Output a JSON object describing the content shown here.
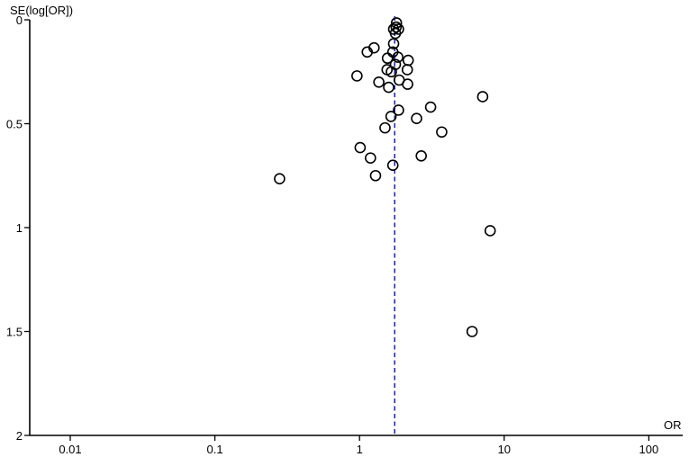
{
  "chart_data": {
    "type": "scatter",
    "title": "",
    "xlabel": "OR",
    "ylabel": "SE(log[OR])",
    "x_scale": "log",
    "y_inverted": true,
    "xlim": [
      0.005,
      175
    ],
    "ylim": [
      0,
      2
    ],
    "x_ticks": [
      0.01,
      0.1,
      1,
      10,
      100
    ],
    "x_tick_labels": [
      "0.01",
      "0.1",
      "1",
      "10",
      "100"
    ],
    "y_ticks": [
      0,
      0.5,
      1,
      1.5,
      2
    ],
    "y_tick_labels": [
      "0",
      "0.5",
      "1",
      "1.5",
      "2"
    ],
    "pooled_or": 1.75,
    "pooled_line_color": "#1f1fb0",
    "grid": false,
    "points": [
      {
        "x": 1.8,
        "y": 0.015
      },
      {
        "x": 1.79,
        "y": 0.035
      },
      {
        "x": 1.72,
        "y": 0.045
      },
      {
        "x": 1.86,
        "y": 0.045
      },
      {
        "x": 1.77,
        "y": 0.065
      },
      {
        "x": 1.72,
        "y": 0.115
      },
      {
        "x": 1.26,
        "y": 0.135
      },
      {
        "x": 1.13,
        "y": 0.155
      },
      {
        "x": 1.7,
        "y": 0.155
      },
      {
        "x": 1.84,
        "y": 0.18
      },
      {
        "x": 1.56,
        "y": 0.185
      },
      {
        "x": 2.17,
        "y": 0.195
      },
      {
        "x": 1.77,
        "y": 0.215
      },
      {
        "x": 1.55,
        "y": 0.24
      },
      {
        "x": 2.14,
        "y": 0.24
      },
      {
        "x": 1.66,
        "y": 0.25
      },
      {
        "x": 0.96,
        "y": 0.27
      },
      {
        "x": 1.88,
        "y": 0.29
      },
      {
        "x": 1.36,
        "y": 0.3
      },
      {
        "x": 2.15,
        "y": 0.31
      },
      {
        "x": 1.59,
        "y": 0.325
      },
      {
        "x": 7.1,
        "y": 0.37
      },
      {
        "x": 3.1,
        "y": 0.42
      },
      {
        "x": 1.86,
        "y": 0.435
      },
      {
        "x": 1.65,
        "y": 0.465
      },
      {
        "x": 2.48,
        "y": 0.475
      },
      {
        "x": 1.5,
        "y": 0.52
      },
      {
        "x": 3.7,
        "y": 0.54
      },
      {
        "x": 1.01,
        "y": 0.615
      },
      {
        "x": 2.67,
        "y": 0.655
      },
      {
        "x": 1.19,
        "y": 0.665
      },
      {
        "x": 1.7,
        "y": 0.7
      },
      {
        "x": 1.29,
        "y": 0.75
      },
      {
        "x": 0.28,
        "y": 0.765
      },
      {
        "x": 8.0,
        "y": 1.015
      },
      {
        "x": 6.0,
        "y": 1.5
      }
    ]
  }
}
